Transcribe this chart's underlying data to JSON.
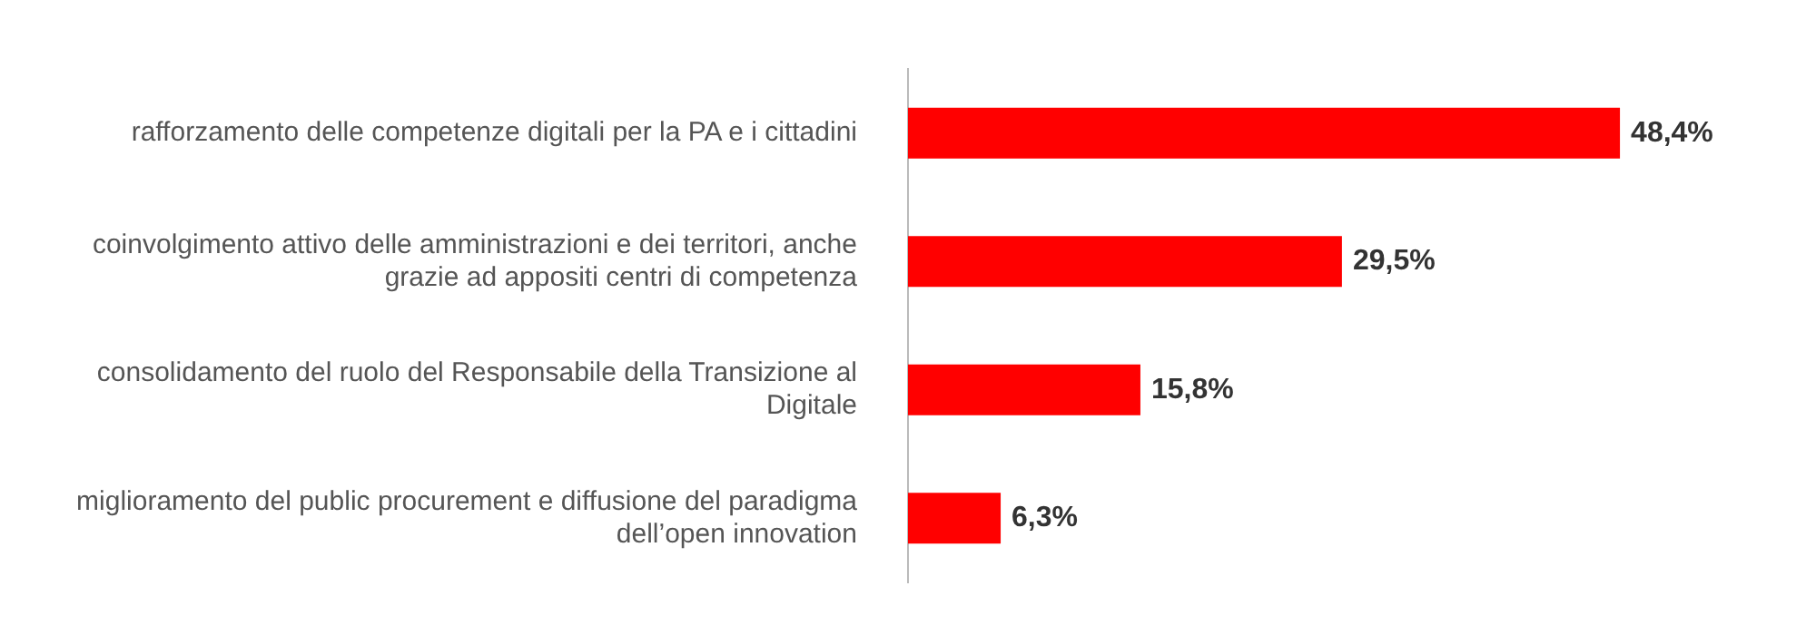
{
  "chart_data": {
    "type": "bar",
    "orientation": "horizontal",
    "categories": [
      "rafforzamento delle competenze digitali per la PA e i cittadini",
      "coinvolgimento attivo delle amministrazioni e dei territori, anche grazie ad appositi centri di competenza",
      "consolidamento del ruolo del Responsabile della Transizione al Digitale",
      "miglioramento del public procurement e diffusione del paradigma dell’open innovation"
    ],
    "values": [
      48.4,
      29.5,
      15.8,
      6.3
    ],
    "value_labels": [
      "48,4%",
      "29,5%",
      "15,8%",
      "6,3%"
    ],
    "color": "#ff0000",
    "legend": false,
    "tick_labels": "y"
  }
}
